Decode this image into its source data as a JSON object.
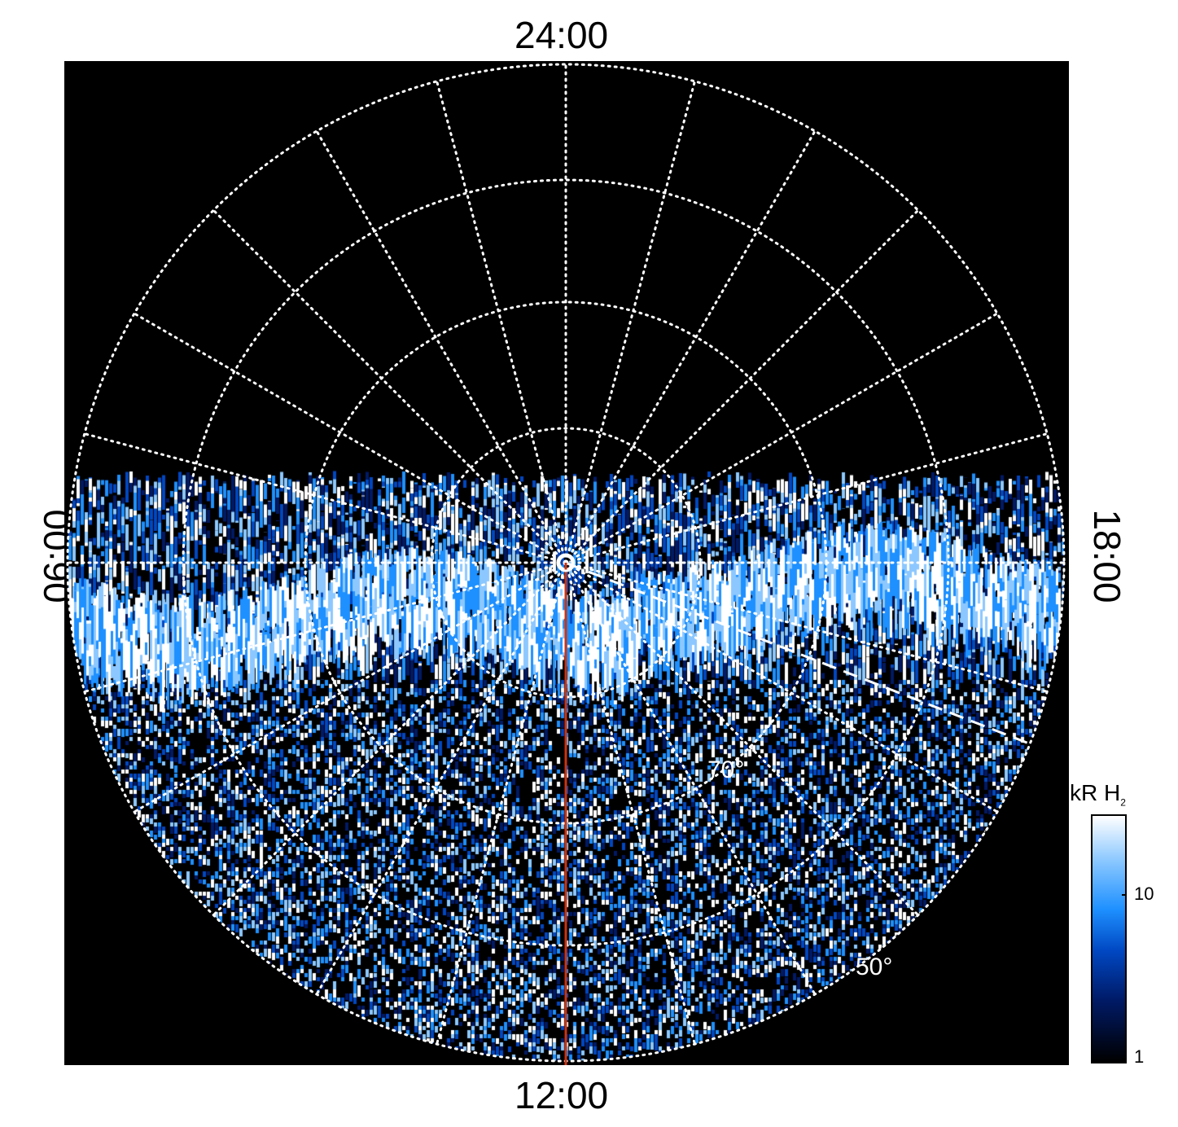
{
  "labels": {
    "top": "24:00",
    "bottom": "12:00",
    "left": "06:00",
    "right": "18:00"
  },
  "grid": {
    "latitude_labels": [
      "70°",
      "50°"
    ],
    "color": "#ffffff",
    "style": "dotted"
  },
  "colorbar": {
    "title": "kR H",
    "title_subscript": "2",
    "ticks": [
      "10",
      "1"
    ],
    "scale": "log",
    "colors": [
      "#000000",
      "#001a66",
      "#0047c2",
      "#1e90ff",
      "#8cc8ff",
      "#ffffff"
    ]
  },
  "overlay": {
    "meridian_line_color": "#cc3311",
    "dashed_line_color": "#ffffff",
    "pole_marker_color": "#ffffff"
  }
}
